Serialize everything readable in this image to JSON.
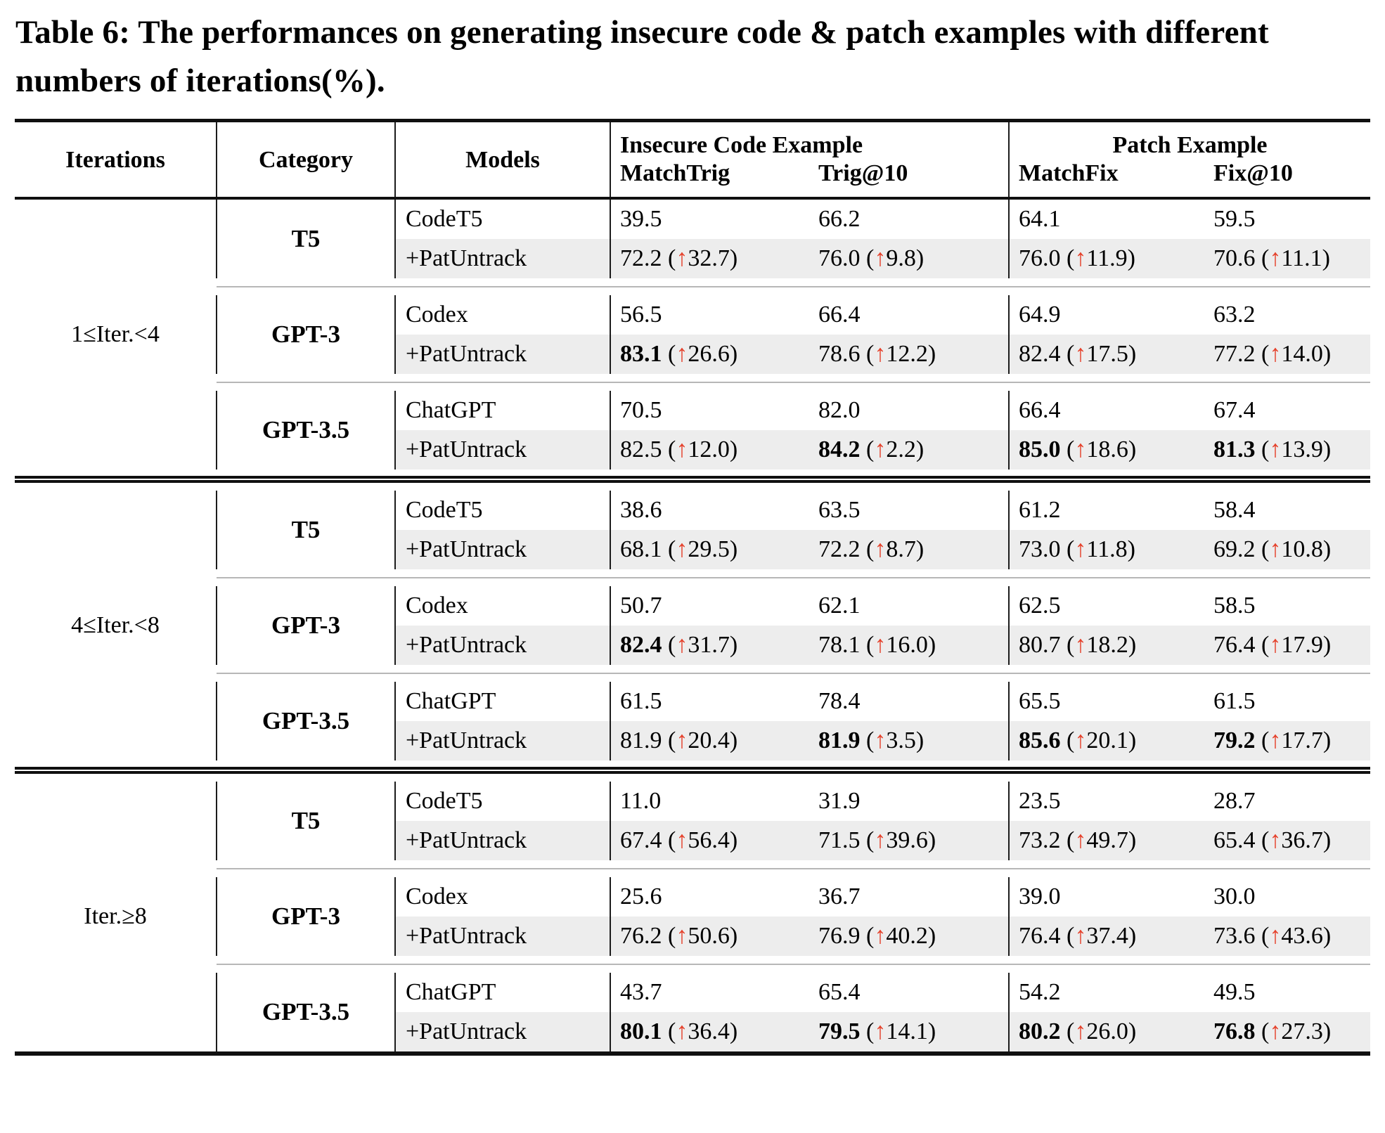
{
  "title": "Table 6: The performances on generating insecure code & patch examples with different numbers of iterations(%).",
  "header": {
    "iterations": "Iterations",
    "category": "Category",
    "models": "Models",
    "insecure_group": "Insecure Code Example",
    "patch_group": "Patch Example",
    "col_matchtrig": "MatchTrig",
    "col_trig10": "Trig@10",
    "col_matchfix": "MatchFix",
    "col_fix10": "Fix@10"
  },
  "colors": {
    "arrow_red": "#e5412b",
    "highlight_row": "#ededed"
  },
  "arrow_glyph": "↑",
  "groups": [
    {
      "iterations": "1≤Iter.<4",
      "subgroups": [
        {
          "category": "T5",
          "rows": [
            {
              "model": "CodeT5",
              "highlight": false,
              "cells": [
                {
                  "v": "39.5"
                },
                {
                  "v": "66.2"
                },
                {
                  "v": "64.1"
                },
                {
                  "v": "59.5"
                }
              ]
            },
            {
              "model": "+PatUntrack",
              "highlight": true,
              "cells": [
                {
                  "v": "72.2",
                  "d": "32.7"
                },
                {
                  "v": "76.0",
                  "d": "9.8"
                },
                {
                  "v": "76.0",
                  "d": "11.9"
                },
                {
                  "v": "70.6",
                  "d": "11.1"
                }
              ]
            }
          ]
        },
        {
          "category": "GPT-3",
          "rows": [
            {
              "model": "Codex",
              "highlight": false,
              "cells": [
                {
                  "v": "56.5"
                },
                {
                  "v": "66.4"
                },
                {
                  "v": "64.9"
                },
                {
                  "v": "63.2"
                }
              ]
            },
            {
              "model": "+PatUntrack",
              "highlight": true,
              "cells": [
                {
                  "v": "83.1",
                  "d": "26.6",
                  "b": true
                },
                {
                  "v": "78.6",
                  "d": "12.2"
                },
                {
                  "v": "82.4",
                  "d": "17.5"
                },
                {
                  "v": "77.2",
                  "d": "14.0"
                }
              ]
            }
          ]
        },
        {
          "category": "GPT-3.5",
          "rows": [
            {
              "model": "ChatGPT",
              "highlight": false,
              "cells": [
                {
                  "v": "70.5"
                },
                {
                  "v": "82.0"
                },
                {
                  "v": "66.4"
                },
                {
                  "v": "67.4"
                }
              ]
            },
            {
              "model": "+PatUntrack",
              "highlight": true,
              "cells": [
                {
                  "v": "82.5",
                  "d": "12.0"
                },
                {
                  "v": "84.2",
                  "d": "2.2",
                  "b": true
                },
                {
                  "v": "85.0",
                  "d": "18.6",
                  "b": true
                },
                {
                  "v": "81.3",
                  "d": "13.9",
                  "b": true
                }
              ]
            }
          ]
        }
      ]
    },
    {
      "iterations": "4≤Iter.<8",
      "subgroups": [
        {
          "category": "T5",
          "rows": [
            {
              "model": "CodeT5",
              "highlight": false,
              "cells": [
                {
                  "v": "38.6"
                },
                {
                  "v": "63.5"
                },
                {
                  "v": "61.2"
                },
                {
                  "v": "58.4"
                }
              ]
            },
            {
              "model": "+PatUntrack",
              "highlight": true,
              "cells": [
                {
                  "v": "68.1",
                  "d": "29.5"
                },
                {
                  "v": "72.2",
                  "d": "8.7"
                },
                {
                  "v": "73.0",
                  "d": "11.8"
                },
                {
                  "v": "69.2",
                  "d": "10.8"
                }
              ]
            }
          ]
        },
        {
          "category": "GPT-3",
          "rows": [
            {
              "model": "Codex",
              "highlight": false,
              "cells": [
                {
                  "v": "50.7"
                },
                {
                  "v": "62.1"
                },
                {
                  "v": "62.5"
                },
                {
                  "v": "58.5"
                }
              ]
            },
            {
              "model": "+PatUntrack",
              "highlight": true,
              "cells": [
                {
                  "v": "82.4",
                  "d": "31.7",
                  "b": true
                },
                {
                  "v": "78.1",
                  "d": "16.0"
                },
                {
                  "v": "80.7",
                  "d": "18.2"
                },
                {
                  "v": "76.4",
                  "d": "17.9"
                }
              ]
            }
          ]
        },
        {
          "category": "GPT-3.5",
          "rows": [
            {
              "model": "ChatGPT",
              "highlight": false,
              "cells": [
                {
                  "v": "61.5"
                },
                {
                  "v": "78.4"
                },
                {
                  "v": "65.5"
                },
                {
                  "v": "61.5"
                }
              ]
            },
            {
              "model": "+PatUntrack",
              "highlight": true,
              "cells": [
                {
                  "v": "81.9",
                  "d": "20.4"
                },
                {
                  "v": "81.9",
                  "d": "3.5",
                  "b": true
                },
                {
                  "v": "85.6",
                  "d": "20.1",
                  "b": true
                },
                {
                  "v": "79.2",
                  "d": "17.7",
                  "b": true
                }
              ]
            }
          ]
        }
      ]
    },
    {
      "iterations": "Iter.≥8",
      "subgroups": [
        {
          "category": "T5",
          "rows": [
            {
              "model": "CodeT5",
              "highlight": false,
              "cells": [
                {
                  "v": "11.0"
                },
                {
                  "v": "31.9"
                },
                {
                  "v": "23.5"
                },
                {
                  "v": "28.7"
                }
              ]
            },
            {
              "model": "+PatUntrack",
              "highlight": true,
              "cells": [
                {
                  "v": "67.4",
                  "d": "56.4"
                },
                {
                  "v": "71.5",
                  "d": "39.6"
                },
                {
                  "v": "73.2",
                  "d": "49.7"
                },
                {
                  "v": "65.4",
                  "d": "36.7"
                }
              ]
            }
          ]
        },
        {
          "category": "GPT-3",
          "rows": [
            {
              "model": "Codex",
              "highlight": false,
              "cells": [
                {
                  "v": "25.6"
                },
                {
                  "v": "36.7"
                },
                {
                  "v": "39.0"
                },
                {
                  "v": "30.0"
                }
              ]
            },
            {
              "model": "+PatUntrack",
              "highlight": true,
              "cells": [
                {
                  "v": "76.2",
                  "d": "50.6"
                },
                {
                  "v": "76.9",
                  "d": "40.2"
                },
                {
                  "v": "76.4",
                  "d": "37.4"
                },
                {
                  "v": "73.6",
                  "d": "43.6"
                }
              ]
            }
          ]
        },
        {
          "category": "GPT-3.5",
          "rows": [
            {
              "model": "ChatGPT",
              "highlight": false,
              "cells": [
                {
                  "v": "43.7"
                },
                {
                  "v": "65.4"
                },
                {
                  "v": "54.2"
                },
                {
                  "v": "49.5"
                }
              ]
            },
            {
              "model": "+PatUntrack",
              "highlight": true,
              "cells": [
                {
                  "v": "80.1",
                  "d": "36.4",
                  "b": true
                },
                {
                  "v": "79.5",
                  "d": "14.1",
                  "b": true
                },
                {
                  "v": "80.2",
                  "d": "26.0",
                  "b": true
                },
                {
                  "v": "76.8",
                  "d": "27.3",
                  "b": true
                }
              ]
            }
          ]
        }
      ]
    }
  ]
}
